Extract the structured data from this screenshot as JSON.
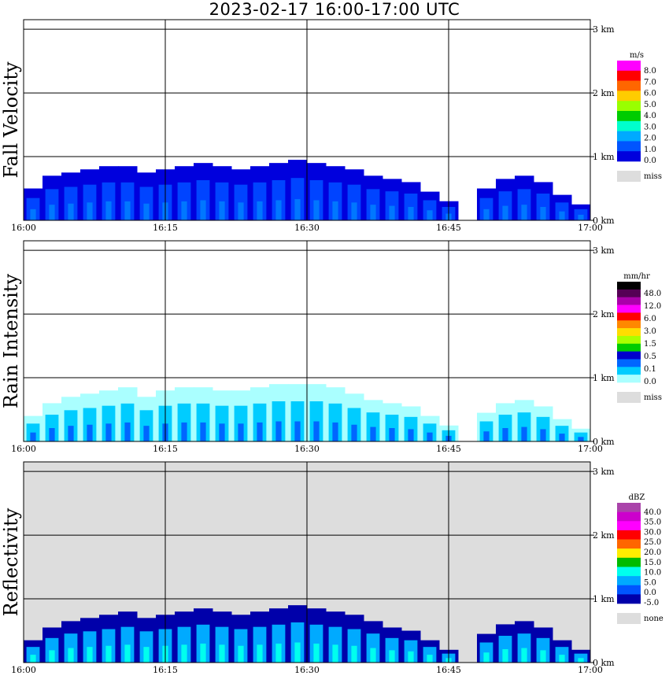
{
  "title": "2023-02-17   16:00-17:00 UTC",
  "chart_data": [
    {
      "type": "heatmap",
      "title": "Fall Velocity",
      "x_ticks": [
        "16:00",
        "16:15",
        "16:30",
        "16:45",
        "17:00"
      ],
      "y_ticks": [
        "0 km",
        "1 km",
        "2 km",
        "3 km"
      ],
      "ylim_km": [
        0,
        3.15
      ],
      "xlim": [
        "16:00",
        "17:00"
      ],
      "grid": true,
      "background": "#ffffff",
      "colorbar": {
        "unit": "m/s",
        "labels": [
          "8.0",
          "7.0",
          "6.0",
          "5.0",
          "4.0",
          "3.0",
          "2.0",
          "1.0",
          "0.0"
        ],
        "colors": [
          "#ff00ff",
          "#ff0000",
          "#ff6600",
          "#ffcc00",
          "#99ff00",
          "#00cc00",
          "#00ffcc",
          "#00aaff",
          "#0055ff",
          "#0000dd"
        ],
        "missing_label": "miss",
        "missing_color": "#dddddd"
      },
      "echo_colors": [
        "#0000dd",
        "#0044ff",
        "#0077ff"
      ],
      "echo_top_km": [
        0.5,
        0.7,
        0.75,
        0.8,
        0.85,
        0.85,
        0.75,
        0.8,
        0.85,
        0.9,
        0.85,
        0.8,
        0.85,
        0.9,
        0.95,
        0.9,
        0.85,
        0.8,
        0.7,
        0.65,
        0.6,
        0.45,
        0.3,
        0.0,
        0.5,
        0.65,
        0.7,
        0.6,
        0.4,
        0.25
      ]
    },
    {
      "type": "heatmap",
      "title": "Rain Intensity",
      "x_ticks": [
        "16:00",
        "16:15",
        "16:30",
        "16:45",
        "17:00"
      ],
      "y_ticks": [
        "0 km",
        "1 km",
        "2 km",
        "3 km"
      ],
      "ylim_km": [
        0,
        3.15
      ],
      "xlim": [
        "16:00",
        "17:00"
      ],
      "grid": true,
      "background": "#ffffff",
      "colorbar": {
        "unit": "mm/hr",
        "labels": [
          "48.0",
          "12.0",
          "6.0",
          "3.0",
          "1.5",
          "0.5",
          "0.1",
          "0.0"
        ],
        "colors": [
          "#000000",
          "#550055",
          "#aa00aa",
          "#ff00ff",
          "#ff0000",
          "#ff8800",
          "#ffdd00",
          "#aaff00",
          "#00cc00",
          "#0000cc",
          "#0066ff",
          "#00ccff",
          "#aaffff"
        ],
        "missing_label": "miss",
        "missing_color": "#dddddd"
      },
      "echo_colors": [
        "#aaffff",
        "#00ccff",
        "#0066ff"
      ],
      "echo_top_km": [
        0.4,
        0.6,
        0.7,
        0.75,
        0.8,
        0.85,
        0.7,
        0.8,
        0.85,
        0.85,
        0.8,
        0.8,
        0.85,
        0.9,
        0.9,
        0.9,
        0.85,
        0.75,
        0.65,
        0.6,
        0.55,
        0.4,
        0.25,
        0.0,
        0.45,
        0.6,
        0.65,
        0.55,
        0.35,
        0.2
      ]
    },
    {
      "type": "heatmap",
      "title": "Reflectivity",
      "x_ticks": [
        "16:00",
        "16:15",
        "16:30",
        "16:45",
        "17:00"
      ],
      "y_ticks": [
        "0 km",
        "1 km",
        "2 km",
        "3 km"
      ],
      "ylim_km": [
        0,
        3.15
      ],
      "xlim": [
        "16:00",
        "17:00"
      ],
      "grid": true,
      "background": "#dddddd",
      "colorbar": {
        "unit": "dBZ",
        "labels": [
          "40.0",
          "35.0",
          "30.0",
          "25.0",
          "20.0",
          "15.0",
          "10.0",
          "5.0",
          "0.0",
          "-5.0"
        ],
        "colors": [
          "#aa44aa",
          "#cc00cc",
          "#ff00ff",
          "#ff0000",
          "#ff6600",
          "#ffee00",
          "#00bb00",
          "#00ffee",
          "#00aaff",
          "#0055ff",
          "#0000aa"
        ],
        "missing_label": "none",
        "missing_color": "#dddddd"
      },
      "echo_colors": [
        "#0000aa",
        "#00aaff",
        "#00ffee"
      ],
      "echo_top_km": [
        0.35,
        0.55,
        0.65,
        0.7,
        0.75,
        0.8,
        0.7,
        0.75,
        0.8,
        0.85,
        0.8,
        0.75,
        0.8,
        0.85,
        0.9,
        0.85,
        0.8,
        0.75,
        0.65,
        0.55,
        0.5,
        0.35,
        0.2,
        0.0,
        0.45,
        0.6,
        0.65,
        0.55,
        0.35,
        0.2
      ]
    }
  ]
}
